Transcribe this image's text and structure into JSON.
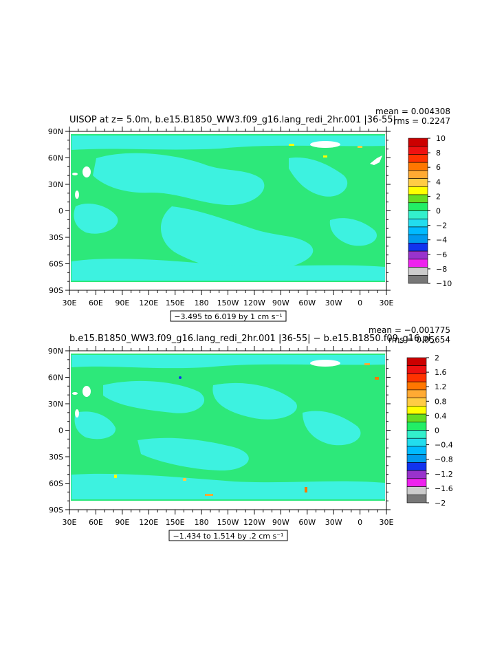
{
  "palette": {
    "map_ocean_pos": "#2de87a",
    "map_ocean_neg": "#3df2e0",
    "land_white": "#ffffff"
  },
  "chart_data": [
    {
      "type": "heatmap",
      "title": "UISOP at z=    5.0m, b.e15.B1850_WW3.f09_g16.lang_redi_2hr.001 |36-55|",
      "stats": [
        "mean = 0.004308",
        "rms = 0.2247"
      ],
      "x_tick_labels": [
        "30E",
        "60E",
        "90E",
        "120E",
        "150E",
        "180",
        "150W",
        "120W",
        "90W",
        "60W",
        "30W",
        "0",
        "30E"
      ],
      "y_tick_labels": [
        "90N",
        "60N",
        "30N",
        "0",
        "30S",
        "60S",
        "90S"
      ],
      "xlim_deg_east": [
        30,
        390
      ],
      "ylim_deg_north": [
        -90,
        90
      ],
      "range_caption": "−3.495 to 6.019 by 1 cm s⁻¹",
      "colorbar_labels": [
        "10",
        "8",
        "6",
        "4",
        "2",
        "0",
        "−2",
        "−4",
        "−6",
        "−8",
        "−10"
      ],
      "colorbar_colors": [
        "#cc0000",
        "#ee1111",
        "#ff3300",
        "#ff7700",
        "#ffaa33",
        "#ffcc44",
        "#ffff00",
        "#66dd22",
        "#22ee66",
        "#33f0cc",
        "#22ddee",
        "#00bbff",
        "#0099ee",
        "#1133ee",
        "#9933cc",
        "#ee22ee",
        "#cccccc",
        "#777777"
      ]
    },
    {
      "type": "heatmap",
      "title": "b.e15.B1850_WW3.f09_g16.lang_redi_2hr.001 |36-55| − b.e15.B1850.f09_g16.pi_",
      "stats": [
        "mean = −0.001775",
        "rms = 0.05654"
      ],
      "x_tick_labels": [
        "30E",
        "60E",
        "90E",
        "120E",
        "150E",
        "180",
        "150W",
        "120W",
        "90W",
        "60W",
        "30W",
        "0",
        "30E"
      ],
      "y_tick_labels": [
        "90N",
        "60N",
        "30N",
        "0",
        "30S",
        "60S",
        "90S"
      ],
      "xlim_deg_east": [
        30,
        390
      ],
      "ylim_deg_north": [
        -90,
        90
      ],
      "range_caption": "−1.434 to 1.514 by .2 cm s⁻¹",
      "colorbar_labels": [
        "2",
        "1.6",
        "1.2",
        "0.8",
        "0.4",
        "0",
        "−0.4",
        "−0.8",
        "−1.2",
        "−1.6",
        "−2"
      ],
      "colorbar_colors": [
        "#cc0000",
        "#ee1111",
        "#ff3300",
        "#ff7700",
        "#ffaa33",
        "#ffcc44",
        "#ffff00",
        "#66dd22",
        "#22ee66",
        "#33f0cc",
        "#22ddee",
        "#00bbff",
        "#0099ee",
        "#1133ee",
        "#9933cc",
        "#ee22ee",
        "#cccccc",
        "#777777"
      ]
    }
  ]
}
